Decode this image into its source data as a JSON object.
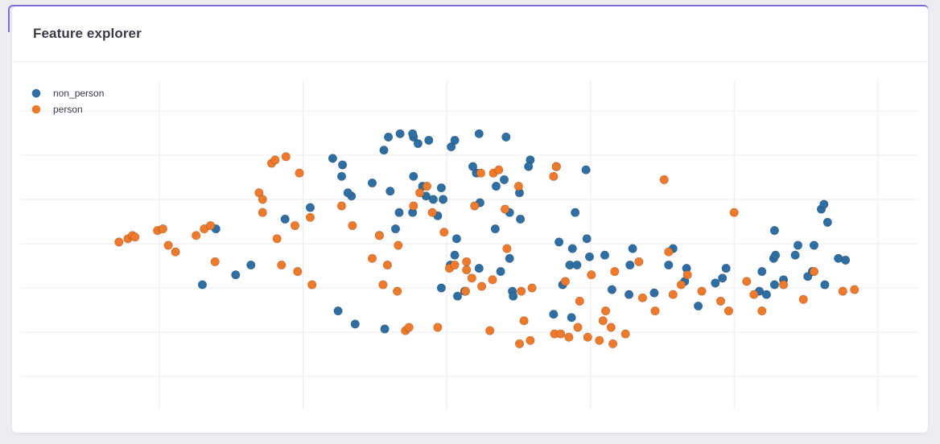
{
  "card": {
    "title": "Feature explorer"
  },
  "colors": {
    "non_person": "#2f6ea2",
    "person": "#ef7a2b",
    "grid": "#ececf0"
  },
  "chart_data": {
    "type": "scatter",
    "title": "",
    "xlabel": "",
    "ylabel": "",
    "xlim": [
      0,
      1
    ],
    "ylim": [
      0,
      1
    ],
    "grid": true,
    "legend": "top-left",
    "series": [
      {
        "name": "non_person",
        "color": "#2f6ea2",
        "points": [
          [
            0.41,
            0.83
          ],
          [
            0.405,
            0.79
          ],
          [
            0.423,
            0.84
          ],
          [
            0.438,
            0.83
          ],
          [
            0.443,
            0.81
          ],
          [
            0.437,
            0.84
          ],
          [
            0.455,
            0.82
          ],
          [
            0.48,
            0.8
          ],
          [
            0.484,
            0.82
          ],
          [
            0.511,
            0.84
          ],
          [
            0.541,
            0.83
          ],
          [
            0.568,
            0.76
          ],
          [
            0.566,
            0.74
          ],
          [
            0.438,
            0.71
          ],
          [
            0.448,
            0.68
          ],
          [
            0.348,
            0.765
          ],
          [
            0.359,
            0.745
          ],
          [
            0.358,
            0.71
          ],
          [
            0.392,
            0.69
          ],
          [
            0.369,
            0.65
          ],
          [
            0.365,
            0.66
          ],
          [
            0.412,
            0.665
          ],
          [
            0.323,
            0.615
          ],
          [
            0.295,
            0.58
          ],
          [
            0.469,
            0.675
          ],
          [
            0.452,
            0.65
          ],
          [
            0.46,
            0.64
          ],
          [
            0.437,
            0.6
          ],
          [
            0.418,
            0.55
          ],
          [
            0.422,
            0.6
          ],
          [
            0.471,
            0.64
          ],
          [
            0.512,
            0.63
          ],
          [
            0.508,
            0.72
          ],
          [
            0.504,
            0.74
          ],
          [
            0.53,
            0.68
          ],
          [
            0.539,
            0.7
          ],
          [
            0.545,
            0.6
          ],
          [
            0.556,
            0.66
          ],
          [
            0.557,
            0.58
          ],
          [
            0.597,
            0.74
          ],
          [
            0.63,
            0.73
          ],
          [
            0.631,
            0.52
          ],
          [
            0.618,
            0.6
          ],
          [
            0.604,
            0.38
          ],
          [
            0.612,
            0.44
          ],
          [
            0.615,
            0.49
          ],
          [
            0.682,
            0.49
          ],
          [
            0.678,
            0.35
          ],
          [
            0.659,
            0.365
          ],
          [
            0.614,
            0.28
          ],
          [
            0.529,
            0.55
          ],
          [
            0.495,
            0.36
          ],
          [
            0.548,
            0.36
          ],
          [
            0.469,
            0.37
          ],
          [
            0.373,
            0.26
          ],
          [
            0.354,
            0.3
          ],
          [
            0.406,
            0.245
          ],
          [
            0.479,
            0.44
          ],
          [
            0.486,
            0.52
          ],
          [
            0.487,
            0.345
          ],
          [
            0.24,
            0.41
          ],
          [
            0.257,
            0.44
          ],
          [
            0.218,
            0.55
          ],
          [
            0.203,
            0.38
          ],
          [
            0.465,
            0.59
          ],
          [
            0.484,
            0.47
          ],
          [
            0.545,
            0.46
          ],
          [
            0.634,
            0.465
          ],
          [
            0.651,
            0.47
          ],
          [
            0.6,
            0.51
          ],
          [
            0.62,
            0.44
          ],
          [
            0.74,
            0.39
          ],
          [
            0.742,
            0.43
          ],
          [
            0.722,
            0.44
          ],
          [
            0.727,
            0.49
          ],
          [
            0.786,
            0.43
          ],
          [
            0.782,
            0.4
          ],
          [
            0.774,
            0.385
          ],
          [
            0.826,
            0.42
          ],
          [
            0.823,
            0.36
          ],
          [
            0.84,
            0.38
          ],
          [
            0.85,
            0.395
          ],
          [
            0.839,
            0.46
          ],
          [
            0.841,
            0.47
          ],
          [
            0.882,
            0.42
          ],
          [
            0.866,
            0.5
          ],
          [
            0.884,
            0.5
          ],
          [
            0.892,
            0.61
          ],
          [
            0.895,
            0.625
          ],
          [
            0.899,
            0.57
          ],
          [
            0.84,
            0.545
          ],
          [
            0.863,
            0.47
          ],
          [
            0.911,
            0.46
          ],
          [
            0.919,
            0.455
          ],
          [
            0.831,
            0.35
          ],
          [
            0.877,
            0.405
          ],
          [
            0.896,
            0.38
          ],
          [
            0.755,
            0.315
          ],
          [
            0.706,
            0.355
          ],
          [
            0.679,
            0.44
          ],
          [
            0.594,
            0.29
          ],
          [
            0.549,
            0.345
          ],
          [
            0.511,
            0.43
          ],
          [
            0.535,
            0.42
          ]
        ]
      },
      {
        "name": "person",
        "color": "#ef7a2b",
        "points": [
          [
            0.11,
            0.51
          ],
          [
            0.12,
            0.52
          ],
          [
            0.125,
            0.53
          ],
          [
            0.128,
            0.525
          ],
          [
            0.153,
            0.545
          ],
          [
            0.159,
            0.55
          ],
          [
            0.165,
            0.5
          ],
          [
            0.173,
            0.48
          ],
          [
            0.196,
            0.53
          ],
          [
            0.205,
            0.55
          ],
          [
            0.212,
            0.56
          ],
          [
            0.217,
            0.45
          ],
          [
            0.266,
            0.66
          ],
          [
            0.27,
            0.64
          ],
          [
            0.27,
            0.6
          ],
          [
            0.28,
            0.75
          ],
          [
            0.284,
            0.76
          ],
          [
            0.296,
            0.77
          ],
          [
            0.311,
            0.72
          ],
          [
            0.286,
            0.52
          ],
          [
            0.291,
            0.44
          ],
          [
            0.306,
            0.56
          ],
          [
            0.309,
            0.42
          ],
          [
            0.323,
            0.585
          ],
          [
            0.325,
            0.38
          ],
          [
            0.358,
            0.62
          ],
          [
            0.37,
            0.56
          ],
          [
            0.392,
            0.46
          ],
          [
            0.4,
            0.53
          ],
          [
            0.4,
            0.53
          ],
          [
            0.404,
            0.38
          ],
          [
            0.409,
            0.44
          ],
          [
            0.421,
            0.5
          ],
          [
            0.42,
            0.36
          ],
          [
            0.438,
            0.62
          ],
          [
            0.445,
            0.66
          ],
          [
            0.453,
            0.68
          ],
          [
            0.459,
            0.6
          ],
          [
            0.472,
            0.54
          ],
          [
            0.478,
            0.43
          ],
          [
            0.484,
            0.44
          ],
          [
            0.496,
            0.36
          ],
          [
            0.506,
            0.62
          ],
          [
            0.513,
            0.72
          ],
          [
            0.527,
            0.72
          ],
          [
            0.533,
            0.73
          ],
          [
            0.54,
            0.61
          ],
          [
            0.542,
            0.49
          ],
          [
            0.555,
            0.68
          ],
          [
            0.558,
            0.36
          ],
          [
            0.57,
            0.37
          ],
          [
            0.594,
            0.71
          ],
          [
            0.597,
            0.74
          ],
          [
            0.607,
            0.39
          ],
          [
            0.623,
            0.33
          ],
          [
            0.636,
            0.41
          ],
          [
            0.649,
            0.27
          ],
          [
            0.652,
            0.3
          ],
          [
            0.658,
            0.25
          ],
          [
            0.662,
            0.42
          ],
          [
            0.689,
            0.45
          ],
          [
            0.693,
            0.34
          ],
          [
            0.707,
            0.3
          ],
          [
            0.717,
            0.7
          ],
          [
            0.722,
            0.48
          ],
          [
            0.727,
            0.35
          ],
          [
            0.736,
            0.38
          ],
          [
            0.743,
            0.41
          ],
          [
            0.759,
            0.36
          ],
          [
            0.78,
            0.33
          ],
          [
            0.789,
            0.3
          ],
          [
            0.795,
            0.6
          ],
          [
            0.809,
            0.39
          ],
          [
            0.817,
            0.35
          ],
          [
            0.826,
            0.3
          ],
          [
            0.85,
            0.38
          ],
          [
            0.872,
            0.335
          ],
          [
            0.884,
            0.42
          ],
          [
            0.916,
            0.36
          ],
          [
            0.929,
            0.365
          ],
          [
            0.497,
            0.425
          ],
          [
            0.503,
            0.4
          ],
          [
            0.514,
            0.375
          ],
          [
            0.526,
            0.395
          ],
          [
            0.497,
            0.45
          ],
          [
            0.429,
            0.24
          ],
          [
            0.433,
            0.25
          ],
          [
            0.465,
            0.25
          ],
          [
            0.523,
            0.24
          ],
          [
            0.556,
            0.2
          ],
          [
            0.561,
            0.27
          ],
          [
            0.568,
            0.21
          ],
          [
            0.595,
            0.23
          ],
          [
            0.602,
            0.23
          ],
          [
            0.611,
            0.22
          ],
          [
            0.621,
            0.25
          ],
          [
            0.632,
            0.22
          ],
          [
            0.645,
            0.21
          ],
          [
            0.66,
            0.2
          ],
          [
            0.674,
            0.23
          ]
        ]
      }
    ]
  }
}
